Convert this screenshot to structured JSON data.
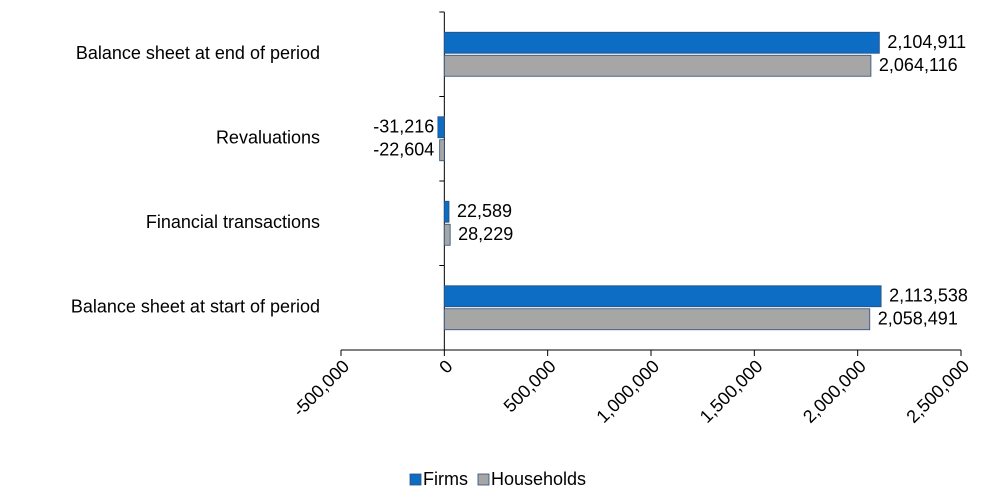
{
  "chart_data": {
    "type": "bar",
    "orientation": "horizontal",
    "categories": [
      "Balance sheet at end of period",
      "Revaluations",
      "Financial transactions",
      "Balance sheet at start of period"
    ],
    "series": [
      {
        "name": "Firms",
        "color": "#0d6cc4",
        "values": [
          2104911,
          -31216,
          22589,
          2113538
        ],
        "value_labels": [
          "2,104,911",
          "-31,216",
          "22,589",
          "2,113,538"
        ]
      },
      {
        "name": "Households",
        "color": "#a6a6a6",
        "values": [
          2064116,
          -22604,
          28229,
          2058491
        ],
        "value_labels": [
          "2,064,116",
          "-22,604",
          "28,229",
          "2,058,491"
        ]
      }
    ],
    "xlim": [
      -500000,
      2500000
    ],
    "xticks": [
      {
        "value": -500000,
        "label": "-500,000"
      },
      0,
      {
        "value": 500000,
        "label": "500,000"
      },
      {
        "value": 1000000,
        "label": "1,000,000"
      },
      {
        "value": 1500000,
        "label": "1,500,000"
      },
      {
        "value": 2000000,
        "label": "2,000,000"
      },
      {
        "value": 2500000,
        "label": "2,500,000"
      }
    ],
    "legend": "bottom"
  }
}
